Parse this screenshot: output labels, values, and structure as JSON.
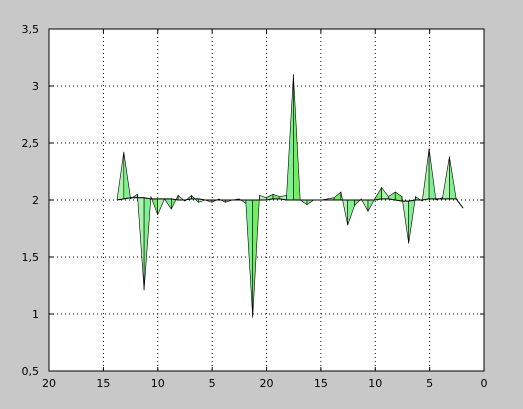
{
  "chart_data": {
    "type": "area",
    "title": "",
    "xlabel": "",
    "ylabel": "",
    "ylim": [
      0.5,
      3.5
    ],
    "grid": true,
    "grid_style": "dotted",
    "baseline": 2.0,
    "colors": {
      "background": "#c8c8c8",
      "plot_background": "#ffffff",
      "fill_light": "#aaf5aa",
      "fill_mid": "#7ff28f",
      "fill_dark": "#72ee62",
      "outline": "#000000",
      "grid": "#000000"
    },
    "x_tick_labels": [
      "20",
      "15",
      "10",
      "5",
      "20",
      "15",
      "10",
      "5",
      "0"
    ],
    "y_tick_labels": [
      "0,5",
      "1",
      "1,5",
      "2",
      "2,5",
      "3",
      "3,5"
    ],
    "series": [
      {
        "values": [
          2.0,
          2.42,
          2.01,
          2.05,
          1.21,
          2.03,
          1.87,
          2.01,
          1.92,
          2.04,
          1.99,
          2.04,
          1.98,
          2.0,
          1.98,
          2.01,
          1.98,
          2.0,
          2.01,
          1.97,
          0.97,
          2.04,
          2.02,
          2.05,
          2.03,
          2.04,
          3.1,
          2.0,
          1.96,
          2.0,
          2.0,
          2.01,
          2.02,
          2.07,
          1.78,
          1.95,
          2.01,
          1.9,
          2.01,
          2.11,
          2.03,
          2.07,
          2.03,
          1.62,
          2.03,
          1.99,
          2.45,
          2.0,
          2.02,
          2.38,
          2.01,
          1.93
        ],
        "trace": [
          2.0,
          2.01,
          2.02,
          2.02,
          2.02,
          2.01,
          2.01,
          2.01,
          2.01,
          2.0,
          2.0,
          2.01,
          2.01,
          2.0,
          2.0,
          2.0,
          2.0,
          2.0,
          2.0,
          2.0,
          2.0,
          2.0,
          2.0,
          2.01,
          2.01,
          2.0,
          2.0,
          2.0,
          2.0,
          2.0,
          2.0,
          2.0,
          2.0,
          2.0,
          2.0,
          2.0,
          2.0,
          2.0,
          2.0,
          2.01,
          2.01,
          2.0,
          1.99,
          1.99,
          2.0,
          2.0,
          2.01,
          2.01,
          2.01,
          2.01,
          2.01,
          1.93
        ]
      }
    ]
  }
}
